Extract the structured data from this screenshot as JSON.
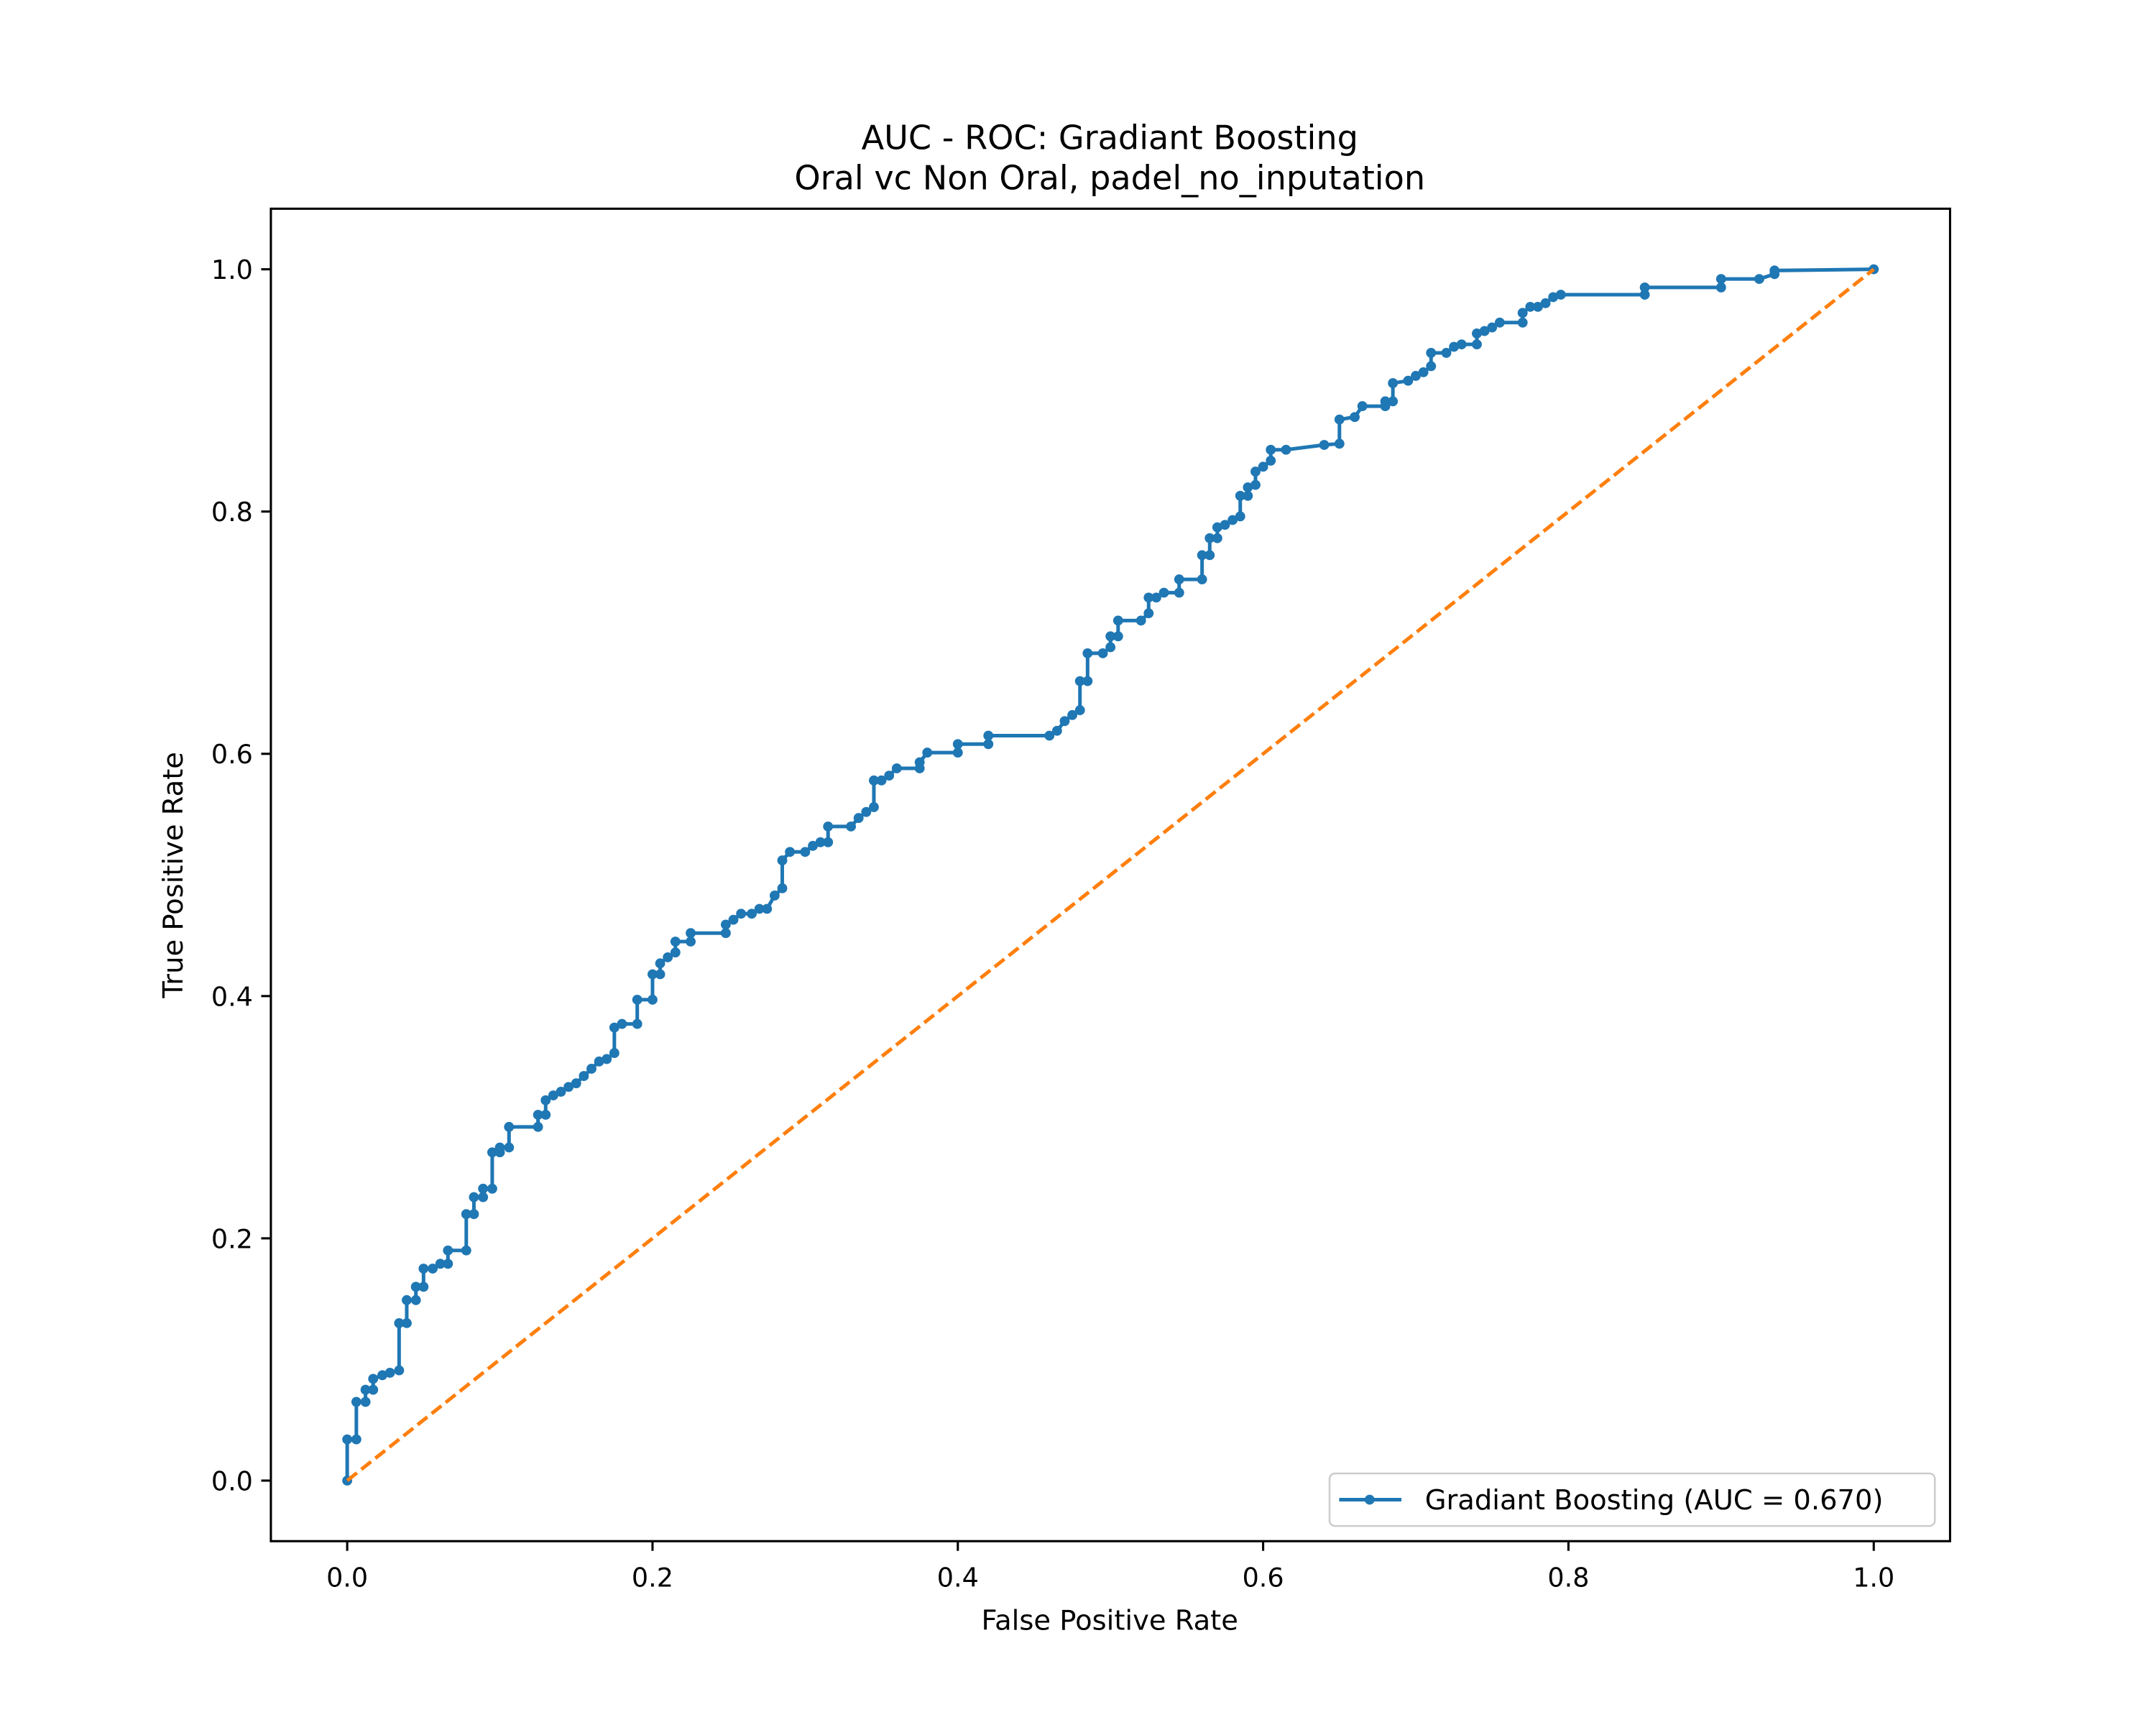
{
  "chart_data": {
    "type": "line",
    "title": "AUC - ROC: Gradiant Boosting",
    "subtitle": "Oral vc Non Oral, padel_no_inputation",
    "xlabel": "False Positive Rate",
    "ylabel": "True Positive Rate",
    "xlim": [
      -0.05,
      1.05
    ],
    "ylim": [
      -0.05,
      1.05
    ],
    "xticks": [
      {
        "value": 0,
        "label": "0.0"
      },
      {
        "value": 0.2,
        "label": "0.2"
      },
      {
        "value": 0.4,
        "label": "0.4"
      },
      {
        "value": 0.6,
        "label": "0.6"
      },
      {
        "value": 0.8,
        "label": "0.8"
      },
      {
        "value": 1,
        "label": "1.0"
      }
    ],
    "yticks": [
      {
        "value": 0,
        "label": "0.0"
      },
      {
        "value": 0.2,
        "label": "0.2"
      },
      {
        "value": 0.4,
        "label": "0.4"
      },
      {
        "value": 0.6,
        "label": "0.6"
      },
      {
        "value": 0.8,
        "label": "0.8"
      },
      {
        "value": 1,
        "label": "1.0"
      }
    ],
    "legend": "lower right",
    "series": [
      {
        "name": "Gradiant Boosting (AUC = 0.670)",
        "color": "#1f77b4",
        "markers": true,
        "x": [
          0,
          0,
          0.006,
          0.006,
          0.012,
          0.012,
          0.017,
          0.017,
          0.023,
          0.028,
          0.034,
          0.034,
          0.039,
          0.039,
          0.045,
          0.045,
          0.05,
          0.05,
          0.056,
          0.061,
          0.066,
          0.066,
          0.078,
          0.078,
          0.083,
          0.083,
          0.089,
          0.089,
          0.095,
          0.095,
          0.1,
          0.1,
          0.106,
          0.106,
          0.125,
          0.125,
          0.13,
          0.13,
          0.135,
          0.14,
          0.145,
          0.15,
          0.155,
          0.16,
          0.165,
          0.17,
          0.175,
          0.175,
          0.18,
          0.19,
          0.19,
          0.2,
          0.2,
          0.205,
          0.205,
          0.21,
          0.215,
          0.215,
          0.225,
          0.225,
          0.248,
          0.248,
          0.253,
          0.258,
          0.265,
          0.27,
          0.275,
          0.28,
          0.285,
          0.285,
          0.29,
          0.3,
          0.305,
          0.31,
          0.315,
          0.315,
          0.33,
          0.335,
          0.34,
          0.345,
          0.345,
          0.35,
          0.355,
          0.36,
          0.375,
          0.375,
          0.38,
          0.4,
          0.4,
          0.42,
          0.42,
          0.46,
          0.465,
          0.47,
          0.475,
          0.48,
          0.48,
          0.485,
          0.485,
          0.495,
          0.5,
          0.5,
          0.505,
          0.505,
          0.52,
          0.525,
          0.525,
          0.53,
          0.535,
          0.545,
          0.545,
          0.56,
          0.56,
          0.565,
          0.565,
          0.57,
          0.57,
          0.575,
          0.58,
          0.585,
          0.585,
          0.59,
          0.59,
          0.595,
          0.595,
          0.6,
          0.605,
          0.605,
          0.615,
          0.64,
          0.65,
          0.65,
          0.66,
          0.665,
          0.68,
          0.68,
          0.685,
          0.685,
          0.695,
          0.7,
          0.705,
          0.71,
          0.71,
          0.72,
          0.725,
          0.73,
          0.74,
          0.74,
          0.745,
          0.75,
          0.755,
          0.77,
          0.77,
          0.775,
          0.78,
          0.785,
          0.79,
          0.795,
          0.85,
          0.85,
          0.9,
          0.9,
          0.925,
          0.935,
          0.935,
          1
        ],
        "values": [
          0,
          0.034,
          0.034,
          0.065,
          0.065,
          0.075,
          0.075,
          0.084,
          0.087,
          0.089,
          0.091,
          0.13,
          0.13,
          0.149,
          0.149,
          0.16,
          0.16,
          0.175,
          0.175,
          0.179,
          0.179,
          0.19,
          0.19,
          0.22,
          0.22,
          0.234,
          0.234,
          0.241,
          0.241,
          0.271,
          0.271,
          0.275,
          0.275,
          0.292,
          0.292,
          0.302,
          0.302,
          0.314,
          0.318,
          0.321,
          0.325,
          0.328,
          0.334,
          0.34,
          0.346,
          0.348,
          0.353,
          0.374,
          0.377,
          0.377,
          0.397,
          0.397,
          0.418,
          0.418,
          0.427,
          0.432,
          0.436,
          0.445,
          0.445,
          0.452,
          0.452,
          0.459,
          0.463,
          0.468,
          0.468,
          0.472,
          0.472,
          0.483,
          0.489,
          0.512,
          0.519,
          0.519,
          0.524,
          0.527,
          0.527,
          0.54,
          0.54,
          0.547,
          0.552,
          0.556,
          0.578,
          0.578,
          0.582,
          0.588,
          0.588,
          0.593,
          0.601,
          0.601,
          0.608,
          0.608,
          0.615,
          0.615,
          0.619,
          0.627,
          0.632,
          0.636,
          0.66,
          0.66,
          0.683,
          0.683,
          0.688,
          0.697,
          0.697,
          0.71,
          0.71,
          0.716,
          0.729,
          0.729,
          0.733,
          0.733,
          0.744,
          0.744,
          0.764,
          0.764,
          0.778,
          0.778,
          0.787,
          0.789,
          0.793,
          0.796,
          0.813,
          0.813,
          0.82,
          0.822,
          0.833,
          0.837,
          0.842,
          0.851,
          0.851,
          0.855,
          0.856,
          0.876,
          0.878,
          0.887,
          0.887,
          0.891,
          0.891,
          0.906,
          0.908,
          0.912,
          0.915,
          0.92,
          0.931,
          0.931,
          0.936,
          0.938,
          0.938,
          0.947,
          0.949,
          0.952,
          0.956,
          0.956,
          0.964,
          0.969,
          0.969,
          0.972,
          0.977,
          0.979,
          0.979,
          0.985,
          0.985,
          0.992,
          0.992,
          0.996,
          0.999,
          1
        ]
      },
      {
        "color": "#ff7f0e",
        "dashed": true,
        "x": [
          0,
          1
        ],
        "values": [
          0,
          1
        ]
      }
    ]
  }
}
